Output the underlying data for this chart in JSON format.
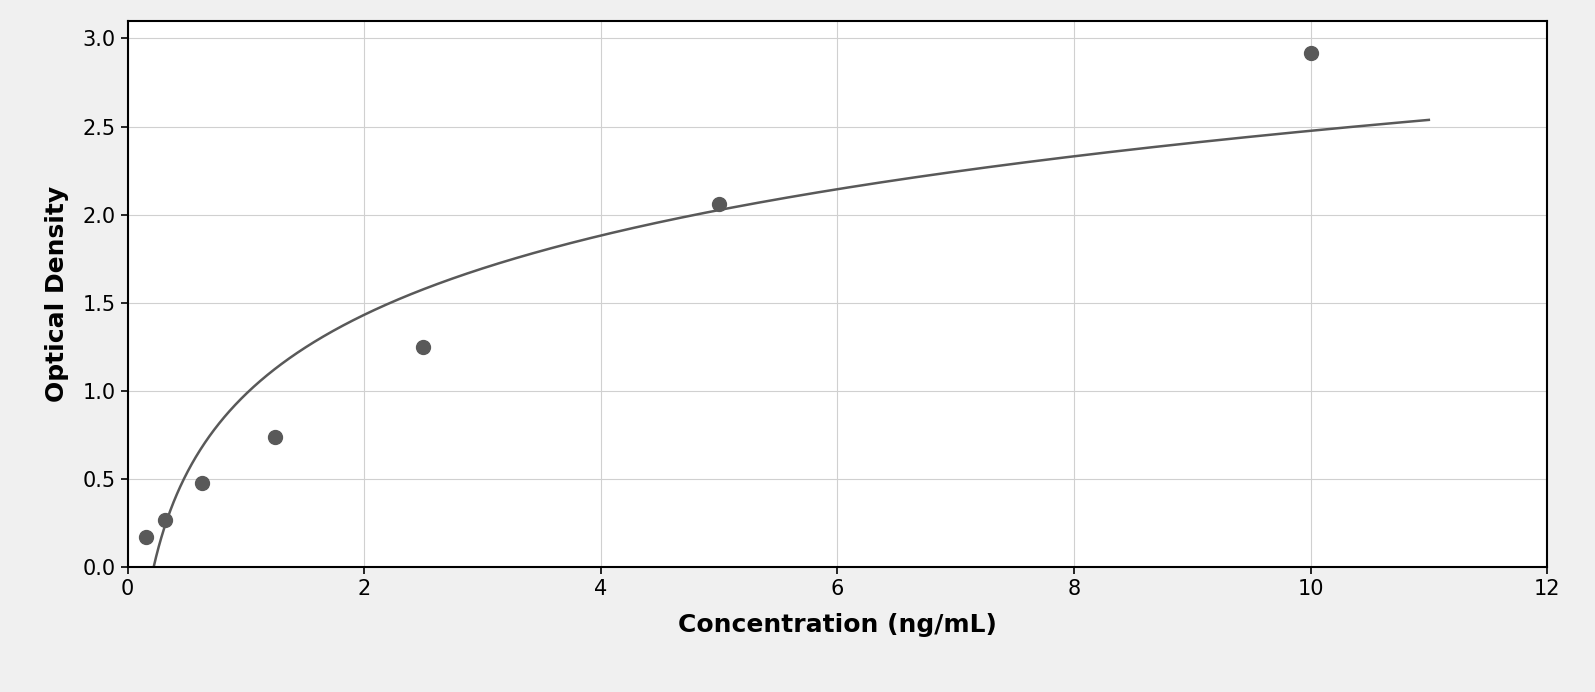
{
  "x_data": [
    0.156,
    0.313,
    0.625,
    1.25,
    2.5,
    5.0,
    10.0
  ],
  "y_data": [
    0.175,
    0.27,
    0.48,
    0.74,
    1.25,
    2.06,
    2.92
  ],
  "xlabel": "Concentration (ng/mL)",
  "ylabel": "Optical Density",
  "xlim": [
    0,
    11
  ],
  "ylim": [
    0,
    3.1
  ],
  "xticks": [
    0,
    2,
    4,
    6,
    8,
    10,
    12
  ],
  "yticks": [
    0,
    0.5,
    1.0,
    1.5,
    2.0,
    2.5,
    3.0
  ],
  "marker_color": "#595959",
  "line_color": "#595959",
  "background_color": "#f0f0f0",
  "plot_background": "#ffffff",
  "grid_color": "#d0d0d0",
  "border_color": "#aaaaaa",
  "marker_size": 10,
  "line_width": 1.8,
  "xlabel_fontsize": 18,
  "ylabel_fontsize": 18,
  "tick_fontsize": 15,
  "xlabel_fontweight": "bold",
  "ylabel_fontweight": "bold"
}
